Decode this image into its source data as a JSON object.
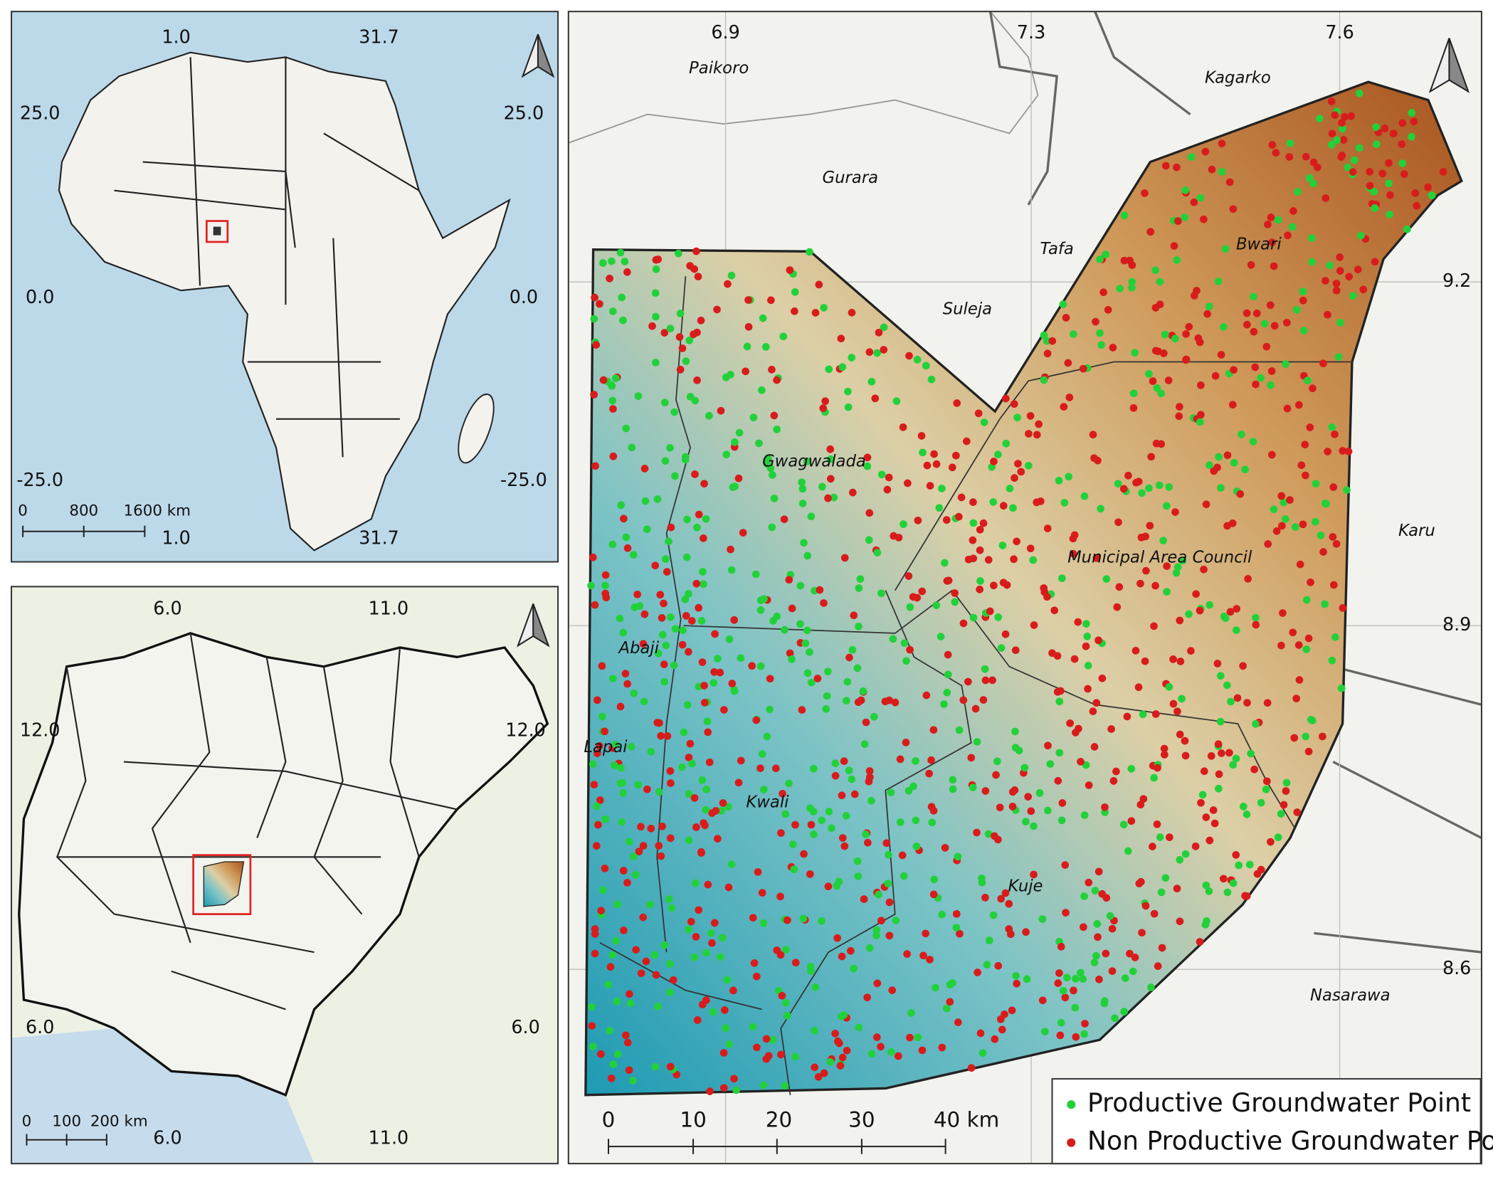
{
  "africa_map": {
    "lon_labels_top": [
      "1.0",
      "31.7"
    ],
    "lon_labels_bottom": [
      "1.0",
      "31.7"
    ],
    "lat_labels_left": [
      "25.0",
      "0.0",
      "-25.0"
    ],
    "lat_labels_right": [
      "25.0",
      "0.0",
      "-25.0"
    ],
    "scale_bar": [
      "0",
      "800",
      "1600 km"
    ]
  },
  "nigeria_map": {
    "lon_labels_top": [
      "6.0",
      "11.0"
    ],
    "lon_labels_bottom": [
      "6.0",
      "11.0"
    ],
    "lat_labels_left": [
      "12.0",
      "6.0"
    ],
    "lat_labels_right": [
      "12.0",
      "6.0"
    ],
    "scale_bar": [
      "0",
      "100",
      "200 km"
    ]
  },
  "fct_map": {
    "lon_labels": [
      "6.9",
      "7.3",
      "7.6"
    ],
    "lat_labels": [
      "9.2",
      "8.9",
      "8.6"
    ],
    "places": [
      "Paikoro",
      "Kagarko",
      "Gurara",
      "Tafa",
      "Bwari",
      "Suleja",
      "Gwagwalada",
      "Municipal Area Council",
      "Karu",
      "Abaji",
      "Lapai",
      "Kwali",
      "Kuje",
      "Nasarawa"
    ],
    "scale_bar": [
      "0",
      "10",
      "20",
      "30",
      "40 km"
    ],
    "legend": [
      {
        "label": "Productive Groundwater Point",
        "color": "#22d13a"
      },
      {
        "label": "Non Productive Groundwater Point",
        "color": "#d81c1c"
      }
    ]
  }
}
